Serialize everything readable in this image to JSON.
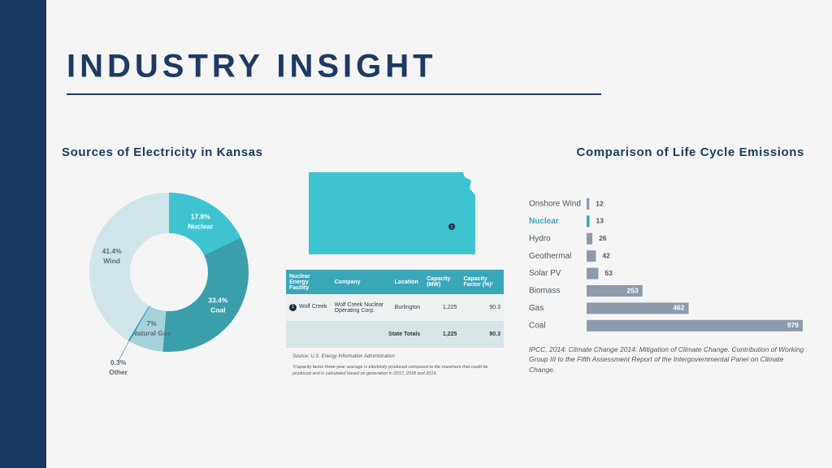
{
  "header": {
    "title": "INDUSTRY INSIGHT"
  },
  "chart_data": [
    {
      "type": "pie",
      "donut": true,
      "title": "Sources of Electricity in Kansas",
      "categories": [
        "Nuclear",
        "Coal",
        "Natural Gas",
        "Other",
        "Wind"
      ],
      "values": [
        17.8,
        33.4,
        7,
        0.3,
        41.4
      ],
      "value_labels": [
        "17.8%",
        "33.4%",
        "7%",
        "0.3%",
        "41.4%"
      ],
      "colors": [
        "#3ec4d1",
        "#3a9eab",
        "#a4d3da",
        "#2a8bc9",
        "#cfe5e9"
      ],
      "label_colors": [
        "#ffffff",
        "#ffffff",
        "#5b6a74",
        "#5b6a74",
        "#5b6a74"
      ]
    },
    {
      "type": "bar",
      "orientation": "horizontal",
      "title": "Comparison of Life Cycle Emissions",
      "categories": [
        "Onshore Wind",
        "Nuclear",
        "Hydro",
        "Geothermal",
        "Solar PV",
        "Biomass",
        "Gas",
        "Coal"
      ],
      "values": [
        12,
        13,
        26,
        42,
        53,
        253,
        462,
        979
      ],
      "colors": [
        "#8c9aab",
        "#3aa6b9",
        "#8c9aab",
        "#8c9aab",
        "#8c9aab",
        "#8c9aab",
        "#8c9aab",
        "#8c9aab"
      ],
      "label_colors": [
        "#4a5661",
        "#3aa6b9",
        "#4a5661",
        "#4a5661",
        "#4a5661",
        "#4a5661",
        "#4a5661",
        "#4a5661"
      ],
      "note": "IPCC, 2014: Climate Change 2014: Mitigation of Climate Change. Contribution of Working Group III to the Fifth Assessment Report of the Intergovernmental Panel on Climate Change."
    }
  ],
  "map": {
    "marker": "1"
  },
  "table": {
    "columns": [
      "Nuclear Energy Facility",
      "Company",
      "Location",
      "Capacity (MW)",
      "Capacity Factor (%)¹"
    ],
    "rows": [
      {
        "marker": "1",
        "cells": [
          "Wolf Creek",
          "Wolf Creek Nuclear Operating Corp.",
          "Burlington",
          "1,225",
          "90.3"
        ]
      }
    ],
    "totals": {
      "label": "State Totals",
      "values": [
        "1,225",
        "90.3"
      ]
    },
    "source": "Source: U.S. Energy Information Administration",
    "footnote": "¹Capacity factor three-year average is electricity produced compared to the maximum that could be produced and is calculated based on generation in 2017, 2018 and 2019."
  }
}
